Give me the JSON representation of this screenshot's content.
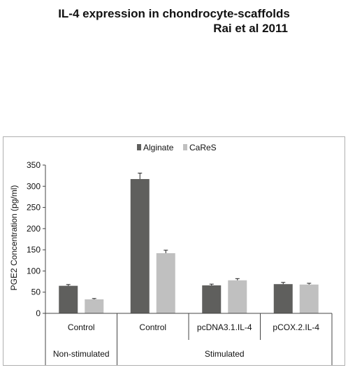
{
  "header": {
    "title": "IL-4 expression in chondrocyte-scaffolds",
    "subtitle": "Rai et al 2011"
  },
  "chart_data": {
    "type": "bar",
    "ylabel": "PGE2 Concentration (pg/ml)",
    "ylim": [
      0,
      350
    ],
    "yticks": [
      0,
      50,
      100,
      150,
      200,
      250,
      300,
      350
    ],
    "grid": false,
    "legend_position": "top-center",
    "categories": [
      "Control",
      "Control",
      "pcDNA3.1.IL-4",
      "pCOX.2.IL-4"
    ],
    "groups": [
      {
        "label": "Non-stimulated",
        "span": 1
      },
      {
        "label": "Stimulated",
        "span": 3
      }
    ],
    "series": [
      {
        "name": "Alginate",
        "color": "#5f5f5d",
        "values": [
          65,
          317,
          66,
          69
        ],
        "errors": [
          3,
          14,
          3,
          4
        ]
      },
      {
        "name": "CaReS",
        "color": "#c0c0c0",
        "values": [
          33,
          142,
          78,
          68
        ],
        "errors": [
          2,
          7,
          4,
          3
        ]
      }
    ]
  }
}
